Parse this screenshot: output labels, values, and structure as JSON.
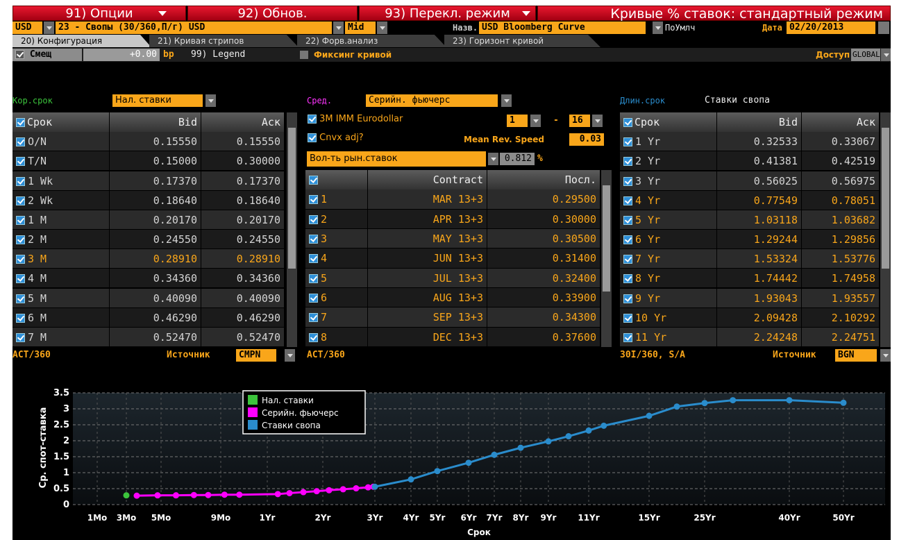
{
  "toolbar": {
    "options": "91) Опции",
    "refresh": "92) Обнов.",
    "mode": "93) Перекл. режим",
    "title": "Кривые % ставок: стандартный режим"
  },
  "settings": {
    "currency": "USD",
    "curve": "23 - Свопы (30/360,П/г) USD",
    "side": "Mid",
    "name_label": "Назв.",
    "name": "USD Bloomberg Curve",
    "default": "ПоУмлч",
    "date_label": "Дата",
    "date": "02/20/2013"
  },
  "tabs": [
    "20) Конфигурация",
    "21) Кривая стрипов",
    "22) Форв.анализ",
    "23) Горизонт кривой"
  ],
  "options": {
    "shift_label": "Смещ",
    "shift": "+0.00",
    "shift_unit": "bp",
    "legend": "99) Legend",
    "fixing": "Фиксинг кривой",
    "access_label": "Доступ",
    "access": "GLOBAL"
  },
  "short": {
    "label": "Кор.срок",
    "type": "Нал. ставки",
    "columns": [
      "Срок",
      "Bid",
      "Аск"
    ],
    "rows": [
      [
        "O/N",
        "0.15550",
        "0.15550"
      ],
      [
        "T/N",
        "0.15000",
        "0.30000"
      ],
      [
        "1 Wk",
        "0.17370",
        "0.17370"
      ],
      [
        "2 Wk",
        "0.18640",
        "0.18640"
      ],
      [
        "1 M",
        "0.20170",
        "0.20170"
      ],
      [
        "2 M",
        "0.24550",
        "0.24550"
      ],
      [
        "3 M",
        "0.28910",
        "0.28910"
      ],
      [
        "4 M",
        "0.34360",
        "0.34360"
      ],
      [
        "5 M",
        "0.40090",
        "0.40090"
      ],
      [
        "6 M",
        "0.46290",
        "0.46290"
      ],
      [
        "7 M",
        "0.52470",
        "0.52470"
      ]
    ],
    "daycount": "ACT/360",
    "source_label": "Источник",
    "source": "CMPN"
  },
  "mid": {
    "label": "Сред.",
    "type": "Серийн. фьючерс",
    "contract_type": "3M IMM Eurodollar",
    "from": "1",
    "dash": "-",
    "to": "16",
    "cnvx": "Cnvx adj?",
    "mrs_label": "Mean Rev. Speed",
    "mrs": "0.03",
    "vol_label": "Вол-ть рын.ставок",
    "vol": "0.812",
    "vol_unit": "%",
    "columns": [
      "Contract",
      "Посл."
    ],
    "rows": [
      [
        "1",
        "MAR 13+3",
        "0.29500"
      ],
      [
        "2",
        "APR 13+3",
        "0.30000"
      ],
      [
        "3",
        "MAY 13+3",
        "0.30500"
      ],
      [
        "4",
        "JUN 13+3",
        "0.31400"
      ],
      [
        "5",
        "JUL 13+3",
        "0.32400"
      ],
      [
        "6",
        "AUG 13+3",
        "0.33900"
      ],
      [
        "7",
        "SEP 13+3",
        "0.34300"
      ],
      [
        "8",
        "DEC 13+3",
        "0.37600"
      ]
    ],
    "daycount": "ACT/360"
  },
  "long": {
    "label": "Длин.срок",
    "type": "Ставки свопа",
    "columns": [
      "Срок",
      "Bid",
      "Аск"
    ],
    "rows": [
      [
        "1 Yr",
        "0.32533",
        "0.33067"
      ],
      [
        "2 Yr",
        "0.41381",
        "0.42519"
      ],
      [
        "3 Yr",
        "0.56025",
        "0.56975"
      ],
      [
        "4 Yr",
        "0.77549",
        "0.78051"
      ],
      [
        "5 Yr",
        "1.03118",
        "1.03682"
      ],
      [
        "6 Yr",
        "1.29244",
        "1.29856"
      ],
      [
        "7 Yr",
        "1.53324",
        "1.53776"
      ],
      [
        "8 Yr",
        "1.74442",
        "1.74958"
      ],
      [
        "9 Yr",
        "1.93043",
        "1.93557"
      ],
      [
        "10 Yr",
        "2.09428",
        "2.10292"
      ],
      [
        "11 Yr",
        "2.24248",
        "2.24751"
      ]
    ],
    "daycount": "30I/360, S/A",
    "source_label": "Источник",
    "source": "BGN"
  },
  "chart_data": {
    "type": "line",
    "xlabel": "Срок",
    "ylabel": "Ср. спот-ставка",
    "grid": true,
    "legend_position": "upper left",
    "xlim": [
      0,
      55
    ],
    "ylim": [
      0,
      3.5
    ],
    "yticks": [
      0,
      0.5,
      1,
      1.5,
      2,
      2.5,
      3,
      3.5
    ],
    "xticks": [
      {
        "value": 0.0833,
        "label": "1Mo"
      },
      {
        "value": 0.25,
        "label": "3Mo"
      },
      {
        "value": 0.4167,
        "label": "5Mo"
      },
      {
        "value": 0.75,
        "label": "9Mo"
      },
      {
        "value": 1,
        "label": "1Yr"
      },
      {
        "value": 2,
        "label": "2Yr"
      },
      {
        "value": 3,
        "label": "3Yr"
      },
      {
        "value": 4,
        "label": "4Yr"
      },
      {
        "value": 5,
        "label": "5Yr"
      },
      {
        "value": 6,
        "label": "6Yr"
      },
      {
        "value": 7,
        "label": "7Yr"
      },
      {
        "value": 8,
        "label": "8Yr"
      },
      {
        "value": 9,
        "label": "9Yr"
      },
      {
        "value": 11,
        "label": "11Yr"
      },
      {
        "value": 15,
        "label": "15Yr"
      },
      {
        "value": 25,
        "label": "25Yr"
      },
      {
        "value": 40,
        "label": "40Yr"
      },
      {
        "value": 50,
        "label": "50Yr"
      }
    ],
    "series": [
      {
        "name": "Нал. ставки",
        "color": "#3cc43c",
        "x": [
          0.25
        ],
        "values": [
          0.29
        ]
      },
      {
        "name": "Серийн. фьючерс",
        "color": "#ff00ff",
        "x": [
          0.3,
          0.4,
          0.5,
          0.6,
          0.68,
          0.77,
          0.85,
          1.19,
          1.4,
          1.65,
          1.89,
          2.12,
          2.39,
          2.64,
          2.87,
          2.97
        ],
        "values": [
          0.28,
          0.29,
          0.29,
          0.3,
          0.3,
          0.31,
          0.31,
          0.33,
          0.36,
          0.39,
          0.42,
          0.45,
          0.48,
          0.51,
          0.54,
          0.56
        ]
      },
      {
        "name": "Ставки свопа",
        "color": "#2a8ccc",
        "x": [
          3,
          4,
          5,
          6,
          7,
          8,
          9,
          10,
          11,
          12,
          15,
          20,
          25,
          30,
          40,
          50
        ],
        "values": [
          0.56,
          0.79,
          1.05,
          1.31,
          1.56,
          1.78,
          1.98,
          2.14,
          2.32,
          2.47,
          2.78,
          3.07,
          3.18,
          3.27,
          3.27,
          3.19
        ]
      }
    ]
  }
}
